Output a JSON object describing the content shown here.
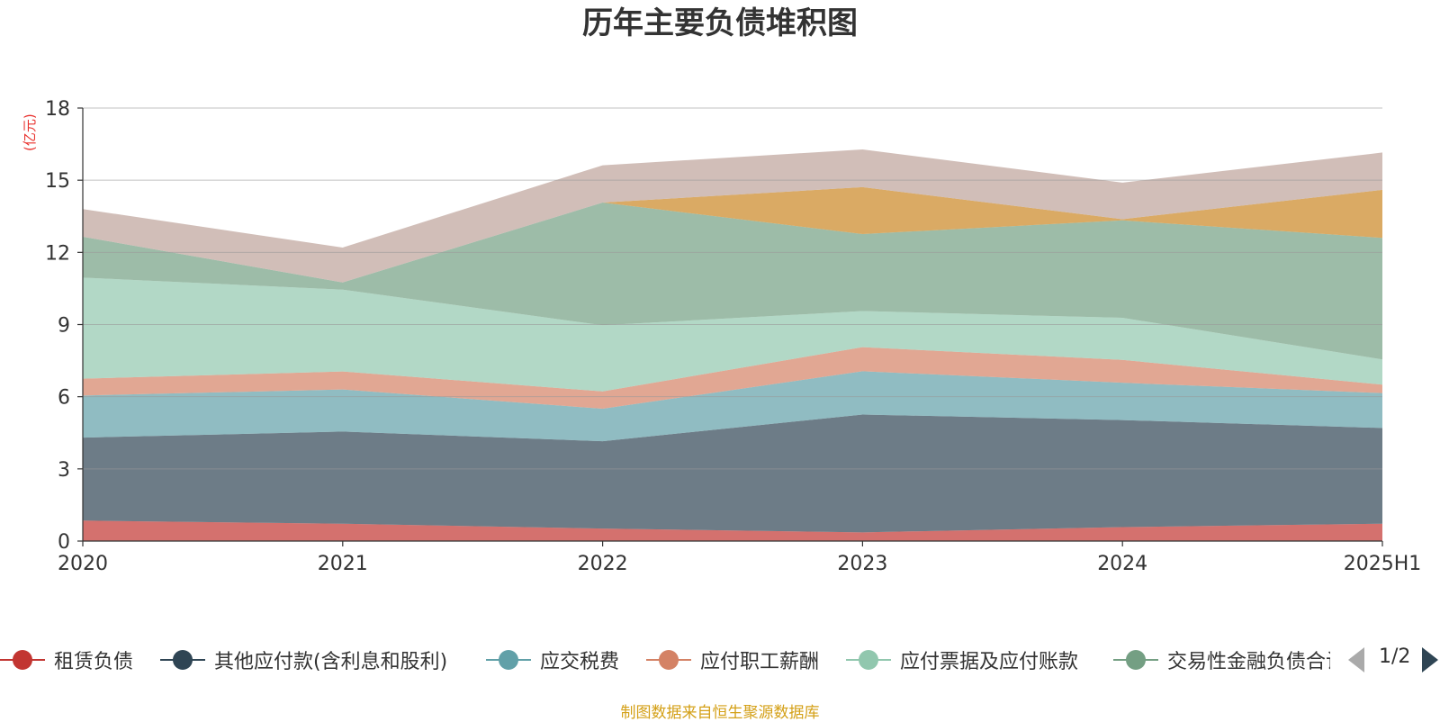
{
  "title": "历年主要负债堆积图",
  "unit_label": "(亿元)",
  "source_note": "制图数据来自恒生聚源数据库",
  "pager": {
    "text": "1/2"
  },
  "chart_data": {
    "type": "area",
    "stacked": true,
    "title": "历年主要负债堆积图",
    "ylabel": "(亿元)",
    "categories": [
      "2020",
      "2021",
      "2022",
      "2023",
      "2024",
      "2025H1"
    ],
    "ylim": [
      0,
      18
    ],
    "yticks": [
      0,
      3,
      6,
      9,
      12,
      15,
      18
    ],
    "grid": true,
    "legend_position": "bottom",
    "series": [
      {
        "name": "租赁负债",
        "color": "#c23531",
        "values": [
          0.85,
          0.72,
          0.52,
          0.36,
          0.58,
          0.72
        ]
      },
      {
        "name": "其他应付款(含利息和股利)",
        "color": "#2f4554",
        "values": [
          3.45,
          3.83,
          3.63,
          4.9,
          4.45,
          3.98
        ]
      },
      {
        "name": "应交税费",
        "color": "#61a0a8",
        "values": [
          1.75,
          1.75,
          1.35,
          1.8,
          1.55,
          1.45
        ]
      },
      {
        "name": "应付职工薪酬",
        "color": "#d48265",
        "values": [
          0.7,
          0.75,
          0.72,
          1.0,
          0.95,
          0.35
        ]
      },
      {
        "name": "应付票据及应付账款",
        "color": "#91c7ae",
        "values": [
          4.2,
          3.4,
          2.75,
          1.5,
          1.75,
          1.05
        ]
      },
      {
        "name": "交易性金融负债合计",
        "color": "#749f83",
        "values": [
          1.7,
          0.3,
          5.1,
          3.2,
          4.05,
          5.05
        ]
      },
      {
        "name": "",
        "color": "#ca8622",
        "values": [
          0,
          0,
          0,
          1.95,
          0.05,
          2.0
        ]
      },
      {
        "name": "",
        "color": "#bda29a",
        "values": [
          1.15,
          1.45,
          1.55,
          1.57,
          1.52,
          1.55
        ]
      }
    ]
  },
  "legend": {
    "items": [
      {
        "label": "租赁负债",
        "color": "#c23531"
      },
      {
        "label": "其他应付款(含利息和股利)",
        "color": "#2f4554"
      },
      {
        "label": "应交税费",
        "color": "#61a0a8"
      },
      {
        "label": "应付职工薪酬",
        "color": "#d48265"
      },
      {
        "label": "应付票据及应付账款",
        "color": "#91c7ae"
      },
      {
        "label": "交易性金融负债合计",
        "color": "#749f83"
      }
    ]
  }
}
